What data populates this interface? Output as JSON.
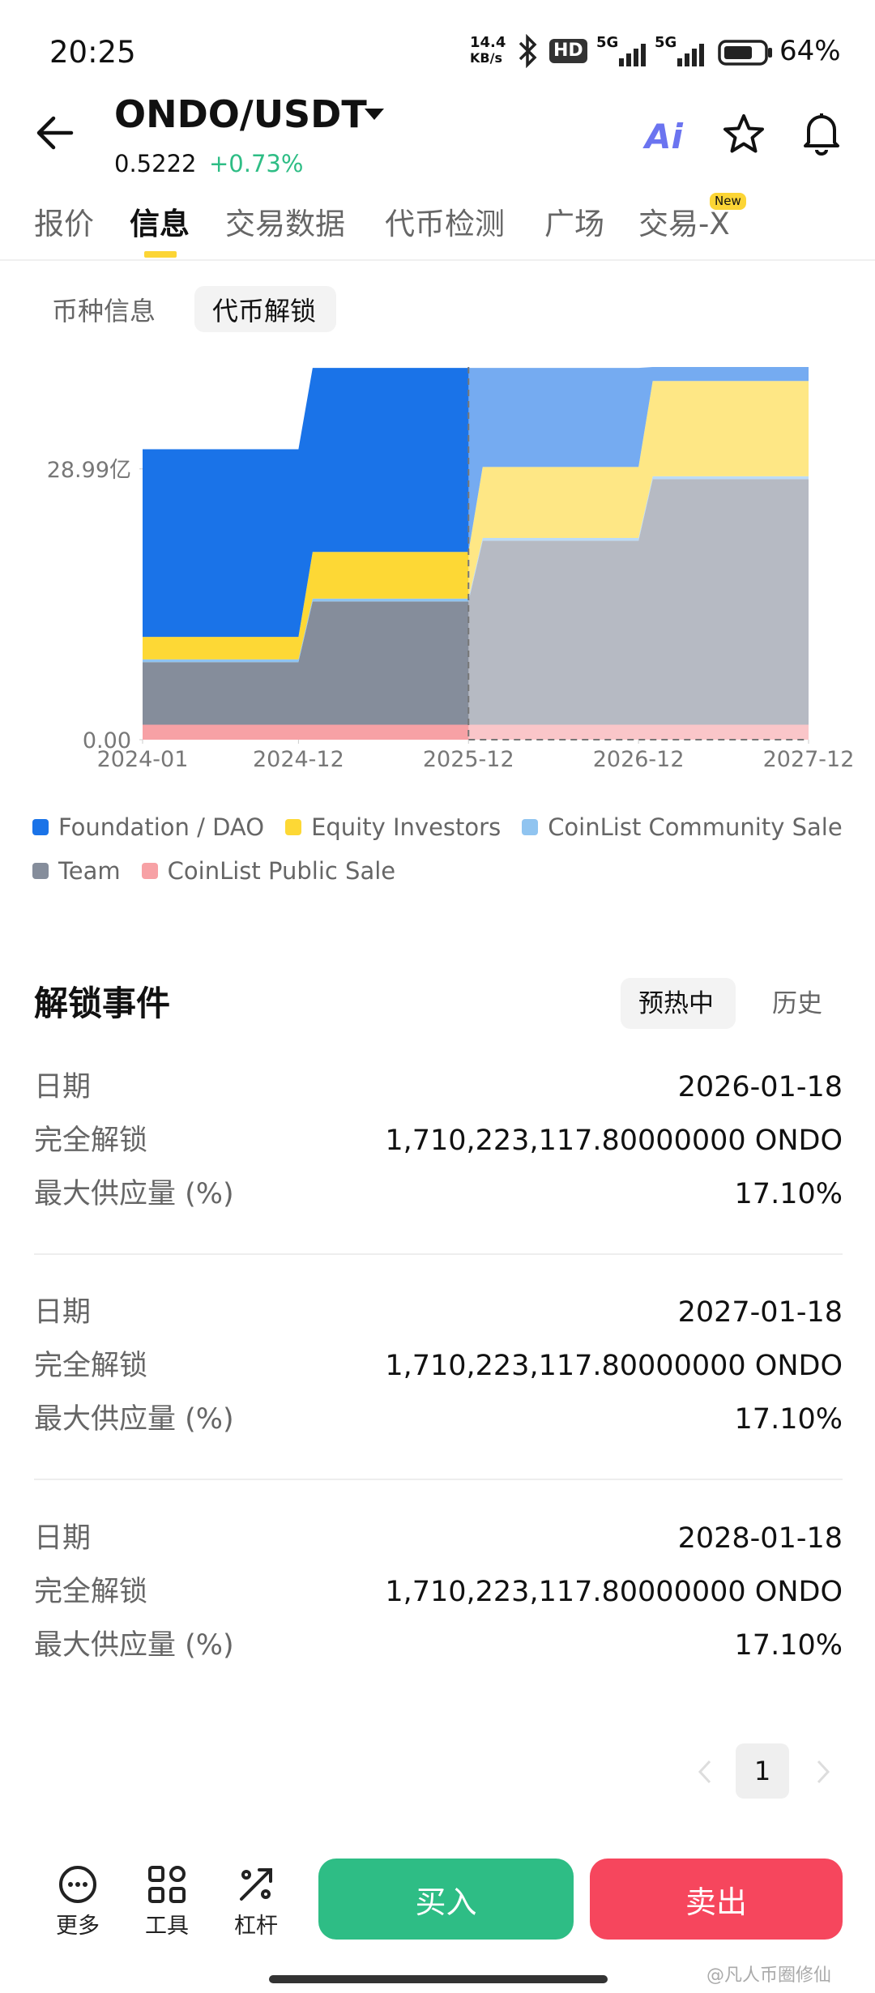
{
  "status_bar": {
    "time": "20:25",
    "net_speed": "14.4",
    "net_unit": "KB/s",
    "hd": "HD",
    "signals": [
      "5G",
      "5G"
    ],
    "battery": "64%"
  },
  "header": {
    "pair": "ONDO/USDT",
    "price": "0.5222",
    "change": "+0.73%",
    "ai": "Ai"
  },
  "tabs": [
    "报价",
    "信息",
    "交易数据",
    "代币检测",
    "广场",
    "交易-X"
  ],
  "new_badge": "New",
  "sub_tabs": [
    "币种信息",
    "代币解锁"
  ],
  "chart_data": {
    "type": "area",
    "stacked": true,
    "x": [
      "2024-01",
      "2024-12",
      "2025-01",
      "2025-12",
      "2026-01",
      "2026-12",
      "2027-01",
      "2027-12"
    ],
    "xlim": [
      "2024-01",
      "2027-12"
    ],
    "xticks": [
      "2024-01",
      "2024-12",
      "2025-12",
      "2026-12",
      "2027-12"
    ],
    "ylim": [
      0,
      39.9
    ],
    "yticks": [
      {
        "value": 0,
        "label": "0.00"
      },
      {
        "value": 28.99,
        "label": "28.99亿"
      }
    ],
    "series": [
      {
        "name": "Foundation / DAO",
        "color": "#1a73e8",
        "values": [
          20.1,
          20.1,
          19.7,
          19.7,
          10.6,
          10.6,
          1.5,
          1.5
        ]
      },
      {
        "name": "Equity Investors",
        "color": "#fdd835",
        "values": [
          2.4,
          2.4,
          5.0,
          5.0,
          7.6,
          7.6,
          10.2,
          10.2
        ]
      },
      {
        "name": "CoinList Community Sale",
        "color": "#90c4f0",
        "values": [
          0.3,
          0.3,
          0.3,
          0.3,
          0.3,
          0.3,
          0.3,
          0.3
        ]
      },
      {
        "name": "Team",
        "color": "#858d9b",
        "values": [
          6.7,
          6.7,
          13.2,
          13.2,
          19.7,
          19.7,
          26.3,
          26.3
        ]
      },
      {
        "name": "CoinList Public Sale",
        "color": "#f7a1a5",
        "values": [
          1.6,
          1.6,
          1.6,
          1.6,
          1.6,
          1.6,
          1.6,
          1.6
        ]
      }
    ]
  },
  "events": {
    "title": "解锁事件",
    "filters": [
      "预热中",
      "历史"
    ],
    "items": [
      {
        "rows": [
          [
            "日期",
            "2026-01-18"
          ],
          [
            "完全解锁",
            "1,710,223,117.80000000 ONDO"
          ],
          [
            "最大供应量 (%)",
            "17.10%"
          ]
        ]
      },
      {
        "rows": [
          [
            "日期",
            "2027-01-18"
          ],
          [
            "完全解锁",
            "1,710,223,117.80000000 ONDO"
          ],
          [
            "最大供应量 (%)",
            "17.10%"
          ]
        ]
      },
      {
        "rows": [
          [
            "日期",
            "2028-01-18"
          ],
          [
            "完全解锁",
            "1,710,223,117.80000000 ONDO"
          ],
          [
            "最大供应量 (%)",
            "17.10%"
          ]
        ]
      }
    ]
  },
  "pagination": {
    "current": 1
  },
  "bottom_bar": {
    "tools": [
      "更多",
      "工具",
      "杠杆"
    ],
    "buy": "买入",
    "sell": "卖出"
  },
  "watermark": "@凡人币圈修仙"
}
